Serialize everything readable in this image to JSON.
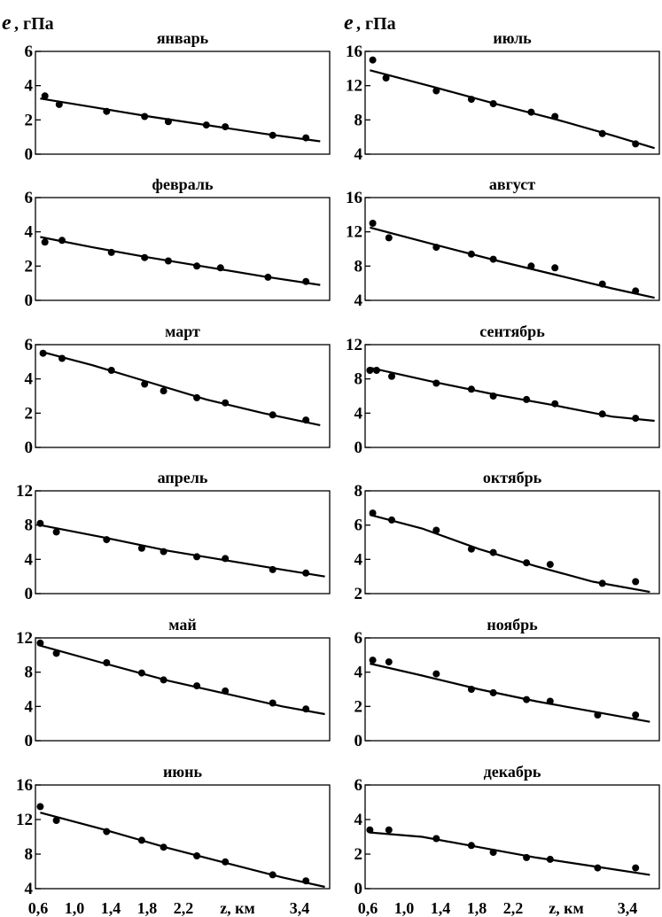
{
  "figure": {
    "y_symbol": "e",
    "y_unit": ", гПа",
    "x_ticks": [
      "0,6",
      "1,0",
      "1,4",
      "1,8",
      "2,2",
      "z, км",
      "3,4"
    ]
  },
  "chart_data": [
    {
      "type": "scatter",
      "title": "январь",
      "ylim": [
        0,
        6
      ],
      "yticks": [
        0,
        2,
        4,
        6
      ],
      "xlim": [
        0.6,
        3.7
      ],
      "x": [
        0.7,
        0.85,
        1.35,
        1.75,
        2.0,
        2.4,
        2.6,
        3.1,
        3.45
      ],
      "y": [
        3.4,
        2.9,
        2.5,
        2.2,
        1.9,
        1.7,
        1.6,
        1.1,
        0.95
      ],
      "fit": [
        [
          0.65,
          3.25
        ],
        [
          1.2,
          2.75
        ],
        [
          1.8,
          2.2
        ],
        [
          2.4,
          1.7
        ],
        [
          3.0,
          1.2
        ],
        [
          3.6,
          0.75
        ]
      ]
    },
    {
      "type": "scatter",
      "title": "июль",
      "ylim": [
        4,
        16
      ],
      "yticks": [
        4,
        8,
        12,
        16
      ],
      "xlim": [
        0.6,
        3.7
      ],
      "x": [
        0.68,
        0.82,
        1.35,
        1.72,
        1.95,
        2.35,
        2.6,
        3.1,
        3.45
      ],
      "y": [
        15,
        12.9,
        11.4,
        10.4,
        9.9,
        8.9,
        8.4,
        6.4,
        5.2
      ],
      "fit": [
        [
          0.65,
          13.8
        ],
        [
          1.3,
          11.9
        ],
        [
          2.0,
          9.8
        ],
        [
          2.6,
          8.1
        ],
        [
          3.2,
          6.2
        ],
        [
          3.65,
          4.7
        ]
      ]
    },
    {
      "type": "scatter",
      "title": "февраль",
      "ylim": [
        0,
        6
      ],
      "yticks": [
        0,
        2,
        4,
        6
      ],
      "xlim": [
        0.6,
        3.7
      ],
      "x": [
        0.7,
        0.88,
        1.4,
        1.75,
        2.0,
        2.3,
        2.55,
        3.05,
        3.45
      ],
      "y": [
        3.4,
        3.5,
        2.8,
        2.5,
        2.3,
        2.0,
        1.9,
        1.35,
        1.1
      ],
      "fit": [
        [
          0.65,
          3.7
        ],
        [
          1.2,
          3.1
        ],
        [
          1.8,
          2.5
        ],
        [
          2.4,
          1.95
        ],
        [
          3.0,
          1.4
        ],
        [
          3.6,
          0.9
        ]
      ]
    },
    {
      "type": "scatter",
      "title": "август",
      "ylim": [
        4,
        16
      ],
      "yticks": [
        4,
        8,
        12,
        16
      ],
      "xlim": [
        0.6,
        3.7
      ],
      "x": [
        0.68,
        0.85,
        1.35,
        1.72,
        1.95,
        2.35,
        2.6,
        3.1,
        3.45
      ],
      "y": [
        13,
        11.3,
        10.2,
        9.4,
        8.8,
        8.0,
        7.8,
        5.9,
        5.1
      ],
      "fit": [
        [
          0.65,
          12.5
        ],
        [
          1.3,
          10.6
        ],
        [
          2.0,
          8.6
        ],
        [
          2.6,
          7.0
        ],
        [
          3.2,
          5.4
        ],
        [
          3.65,
          4.3
        ]
      ]
    },
    {
      "type": "scatter",
      "title": "март",
      "ylim": [
        0,
        6
      ],
      "yticks": [
        0,
        2,
        4,
        6
      ],
      "xlim": [
        0.6,
        3.7
      ],
      "x": [
        0.68,
        0.88,
        1.4,
        1.75,
        1.95,
        2.3,
        2.6,
        3.1,
        3.45
      ],
      "y": [
        5.5,
        5.2,
        4.5,
        3.7,
        3.3,
        2.9,
        2.6,
        1.9,
        1.6
      ],
      "fit": [
        [
          0.65,
          5.6
        ],
        [
          1.2,
          4.8
        ],
        [
          1.8,
          3.8
        ],
        [
          2.4,
          2.8
        ],
        [
          3.0,
          2.0
        ],
        [
          3.6,
          1.3
        ]
      ]
    },
    {
      "type": "scatter",
      "title": "сентябрь",
      "ylim": [
        0,
        12
      ],
      "yticks": [
        0,
        4,
        8,
        12
      ],
      "xlim": [
        0.6,
        3.7
      ],
      "x": [
        0.65,
        0.72,
        0.88,
        1.35,
        1.72,
        1.95,
        2.3,
        2.6,
        3.1,
        3.45
      ],
      "y": [
        9.0,
        9.0,
        8.3,
        7.5,
        6.8,
        6.0,
        5.6,
        5.1,
        3.9,
        3.4
      ],
      "fit": [
        [
          0.65,
          9.3
        ],
        [
          1.3,
          7.7
        ],
        [
          2.0,
          6.1
        ],
        [
          2.6,
          4.9
        ],
        [
          3.2,
          3.6
        ],
        [
          3.65,
          3.1
        ]
      ]
    },
    {
      "type": "scatter",
      "title": "апрель",
      "ylim": [
        0,
        12
      ],
      "yticks": [
        0,
        4,
        8,
        12
      ],
      "xlim": [
        0.6,
        3.7
      ],
      "x": [
        0.65,
        0.82,
        1.35,
        1.72,
        1.95,
        2.3,
        2.6,
        3.1,
        3.45
      ],
      "y": [
        8.2,
        7.2,
        6.3,
        5.3,
        4.9,
        4.3,
        4.1,
        2.8,
        2.4
      ],
      "fit": [
        [
          0.65,
          8.0
        ],
        [
          1.3,
          6.6
        ],
        [
          2.0,
          5.0
        ],
        [
          2.6,
          3.9
        ],
        [
          3.2,
          2.8
        ],
        [
          3.65,
          2.0
        ]
      ]
    },
    {
      "type": "scatter",
      "title": "октябрь",
      "ylim": [
        2,
        8
      ],
      "yticks": [
        2,
        4,
        6,
        8
      ],
      "xlim": [
        0.6,
        3.7
      ],
      "x": [
        0.68,
        0.88,
        1.35,
        1.72,
        1.95,
        2.3,
        2.55,
        3.1,
        3.45
      ],
      "y": [
        6.7,
        6.3,
        5.7,
        4.6,
        4.4,
        3.8,
        3.7,
        2.6,
        2.7
      ],
      "fit": [
        [
          0.65,
          6.6
        ],
        [
          1.2,
          5.8
        ],
        [
          1.8,
          4.6
        ],
        [
          2.4,
          3.6
        ],
        [
          3.0,
          2.7
        ],
        [
          3.6,
          2.1
        ]
      ]
    },
    {
      "type": "scatter",
      "title": "май",
      "ylim": [
        0,
        12
      ],
      "yticks": [
        0,
        4,
        8,
        12
      ],
      "xlim": [
        0.6,
        3.7
      ],
      "x": [
        0.65,
        0.82,
        1.35,
        1.72,
        1.95,
        2.3,
        2.6,
        3.1,
        3.45
      ],
      "y": [
        11.4,
        10.2,
        9.1,
        7.9,
        7.1,
        6.4,
        5.8,
        4.4,
        3.7
      ],
      "fit": [
        [
          0.65,
          11.1
        ],
        [
          1.3,
          9.1
        ],
        [
          2.0,
          7.0
        ],
        [
          2.6,
          5.5
        ],
        [
          3.2,
          4.0
        ],
        [
          3.65,
          3.1
        ]
      ]
    },
    {
      "type": "scatter",
      "title": "ноябрь",
      "ylim": [
        0,
        6
      ],
      "yticks": [
        0,
        2,
        4,
        6
      ],
      "xlim": [
        0.6,
        3.7
      ],
      "x": [
        0.68,
        0.85,
        1.35,
        1.72,
        1.95,
        2.3,
        2.55,
        3.05,
        3.45
      ],
      "y": [
        4.7,
        4.6,
        3.9,
        3.0,
        2.8,
        2.4,
        2.3,
        1.5,
        1.5
      ],
      "fit": [
        [
          0.65,
          4.5
        ],
        [
          1.2,
          3.8
        ],
        [
          1.8,
          3.0
        ],
        [
          2.4,
          2.3
        ],
        [
          3.0,
          1.7
        ],
        [
          3.6,
          1.1
        ]
      ]
    },
    {
      "type": "scatter",
      "title": "июнь",
      "ylim": [
        4,
        16
      ],
      "yticks": [
        4,
        8,
        12,
        16
      ],
      "xlim": [
        0.6,
        3.7
      ],
      "x": [
        0.65,
        0.82,
        1.35,
        1.72,
        1.95,
        2.3,
        2.6,
        3.1,
        3.45
      ],
      "y": [
        13.5,
        11.9,
        10.6,
        9.6,
        8.8,
        7.8,
        7.1,
        5.6,
        4.9
      ],
      "fit": [
        [
          0.65,
          12.8
        ],
        [
          1.3,
          10.9
        ],
        [
          2.0,
          8.7
        ],
        [
          2.6,
          7.0
        ],
        [
          3.2,
          5.3
        ],
        [
          3.65,
          4.2
        ]
      ]
    },
    {
      "type": "scatter",
      "title": "декабрь",
      "ylim": [
        0,
        6
      ],
      "yticks": [
        0,
        2,
        4,
        6
      ],
      "xlim": [
        0.6,
        3.7
      ],
      "x": [
        0.65,
        0.85,
        1.35,
        1.72,
        1.95,
        2.3,
        2.55,
        3.05,
        3.45
      ],
      "y": [
        3.4,
        3.4,
        2.9,
        2.5,
        2.1,
        1.8,
        1.7,
        1.2,
        1.2
      ],
      "fit": [
        [
          0.65,
          3.25
        ],
        [
          1.2,
          3.0
        ],
        [
          1.8,
          2.4
        ],
        [
          2.4,
          1.8
        ],
        [
          3.0,
          1.3
        ],
        [
          3.6,
          0.8
        ]
      ]
    }
  ]
}
